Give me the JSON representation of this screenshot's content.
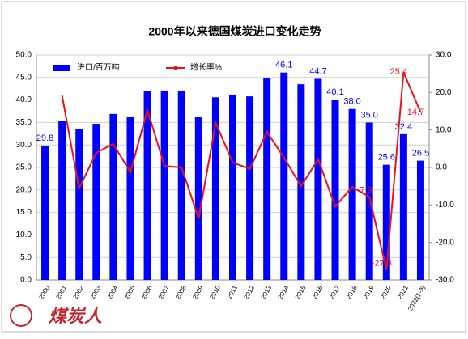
{
  "chart_data": {
    "type": "bar-line",
    "title": "2000年以来德国煤炭进口变化走势",
    "logo": "煤炭人",
    "categories": [
      "2000",
      "2001",
      "2002",
      "2003",
      "2004",
      "2005",
      "2006",
      "2007",
      "2008",
      "2009",
      "2010",
      "2011",
      "2012",
      "2013",
      "2014",
      "2015",
      "2016",
      "2017",
      "2018",
      "2019",
      "2020",
      "2021",
      "2022(1-9)"
    ],
    "series": [
      {
        "name": "进口/百万吨",
        "type": "bar",
        "color": "#0000ff",
        "axis": "y",
        "values": [
          29.8,
          35.4,
          33.6,
          34.7,
          36.9,
          36.3,
          41.9,
          42.1,
          42.1,
          36.3,
          40.6,
          41.2,
          40.8,
          44.8,
          46.1,
          43.5,
          44.7,
          40.1,
          38.0,
          35.0,
          25.6,
          32.4,
          26.5
        ],
        "value_labels": [
          "29.8",
          null,
          null,
          null,
          null,
          null,
          null,
          null,
          null,
          null,
          null,
          null,
          null,
          null,
          "46.1",
          null,
          "44.7",
          "40.1",
          "38.0",
          "35.0",
          "25.6",
          "32.4",
          "26.5"
        ]
      },
      {
        "name": "增长率%",
        "type": "line",
        "color": "#e8141c",
        "axis": "y2",
        "values": [
          null,
          19.2,
          -5.6,
          3.9,
          6.3,
          -1.3,
          15.3,
          0.4,
          0.0,
          -13.6,
          11.9,
          1.3,
          -0.4,
          9.5,
          2.6,
          -5.0,
          2.2,
          -10.4,
          -5.2,
          -7.9,
          -27.3,
          25.4,
          14.7
        ],
        "value_labels": [
          null,
          null,
          null,
          null,
          null,
          null,
          null,
          null,
          null,
          null,
          null,
          null,
          null,
          null,
          null,
          null,
          null,
          null,
          null,
          "-7.9",
          "-27.3",
          "25.4",
          "14.7"
        ]
      }
    ],
    "ylim": [
      0,
      50
    ],
    "yticks": [
      {
        "value": 0,
        "label": "0.0"
      },
      {
        "value": 5,
        "label": "5.0"
      },
      {
        "value": 10,
        "label": "10.0"
      },
      {
        "value": 15,
        "label": "15.0"
      },
      {
        "value": 20,
        "label": "20.0"
      },
      {
        "value": 25,
        "label": "25.0"
      },
      {
        "value": 30,
        "label": "30.0"
      },
      {
        "value": 35,
        "label": "35.0"
      },
      {
        "value": 40,
        "label": "40.0"
      },
      {
        "value": 45,
        "label": "45.0"
      },
      {
        "value": 50,
        "label": "50.0"
      }
    ],
    "y2lim": [
      -30,
      30
    ],
    "y2ticks": [
      {
        "value": -30,
        "label": "-30.0"
      },
      {
        "value": -20,
        "label": "-20.0"
      },
      {
        "value": -10,
        "label": "-10.0"
      },
      {
        "value": 0,
        "label": "0.0"
      },
      {
        "value": 10,
        "label": "10.0"
      },
      {
        "value": 20,
        "label": "20.0"
      },
      {
        "value": 30,
        "label": "30.0"
      }
    ],
    "grid": true
  }
}
